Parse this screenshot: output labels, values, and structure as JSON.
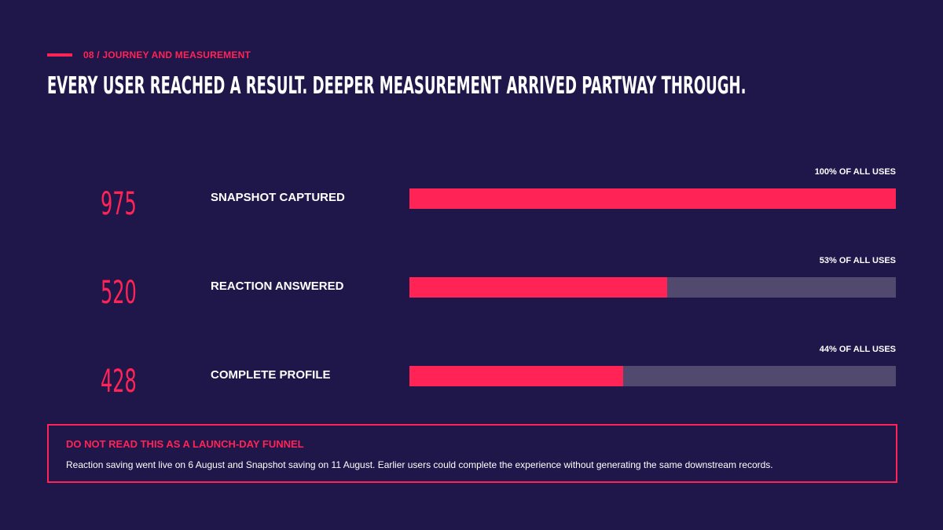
{
  "eyebrow": "08 / JOURNEY AND MEASUREMENT",
  "headline": "EVERY USER REACHED A RESULT. DEEPER MEASUREMENT ARRIVED PARTWAY THROUGH.",
  "chart_data": {
    "type": "bar",
    "orientation": "horizontal",
    "categories": [
      "SNAPSHOT CAPTURED",
      "REACTION ANSWERED",
      "COMPLETE PROFILE"
    ],
    "values": [
      975,
      520,
      428
    ],
    "value_labels": [
      "975",
      "520",
      "428"
    ],
    "percent_of_all_uses": [
      100,
      53,
      44
    ],
    "percent_labels": [
      "100% OF ALL USES",
      "53% OF ALL USES",
      "44% OF ALL USES"
    ],
    "xlim": [
      0,
      100
    ],
    "grid": false,
    "colors": {
      "fill": "#ff2356",
      "track": "#524a6e",
      "background": "#1f174a"
    }
  },
  "note": {
    "title": "DO NOT READ THIS AS A LAUNCH-DAY FUNNEL",
    "body": "Reaction saving went live on 6 August and Snapshot saving on 11 August. Earlier users could complete the experience without generating the same downstream records."
  }
}
